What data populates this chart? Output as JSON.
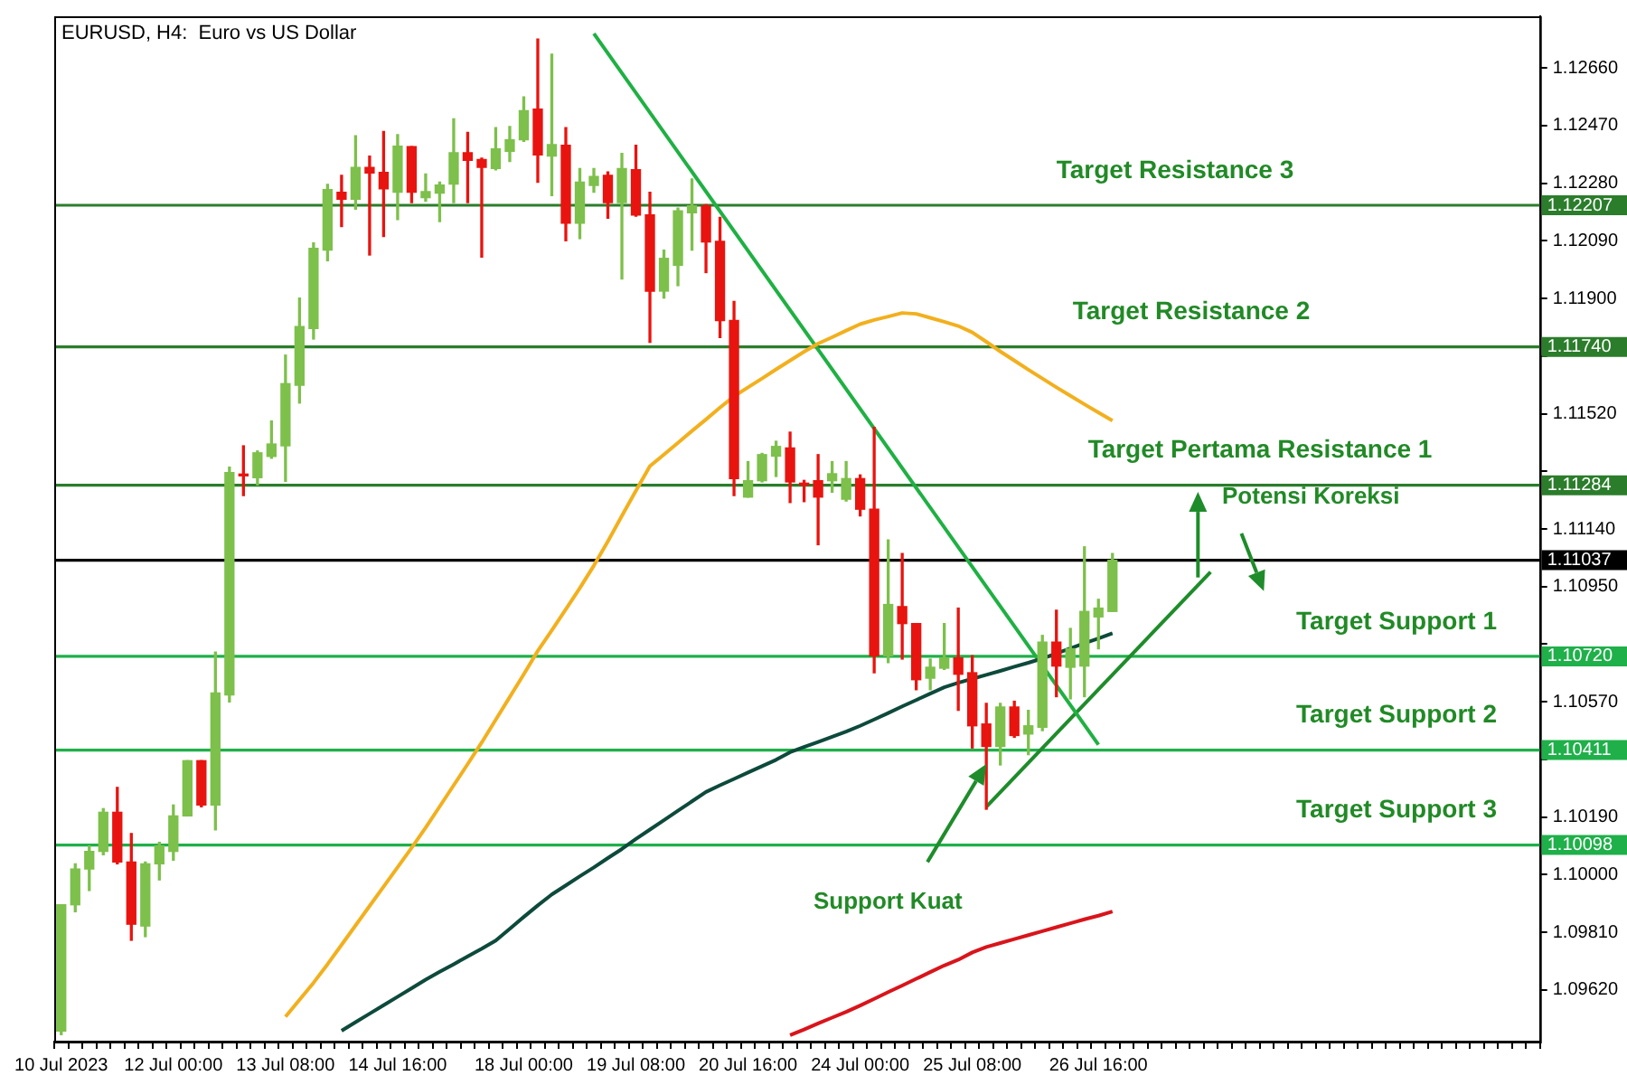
{
  "chart_data": {
    "type": "candlestick",
    "title": "EURUSD, H4:  Euro vs US Dollar",
    "categories": [
      "10 Jul 2023",
      null,
      null,
      null,
      null,
      null,
      null,
      null,
      "12 Jul 00:00",
      null,
      null,
      null,
      null,
      null,
      null,
      null,
      "13 Jul 08:00",
      null,
      null,
      null,
      null,
      null,
      null,
      null,
      "14 Jul 16:00",
      null,
      null,
      null,
      null,
      null,
      null,
      null,
      null,
      "18 Jul 00:00",
      null,
      null,
      null,
      null,
      null,
      null,
      null,
      "19 Jul 08:00",
      null,
      null,
      null,
      null,
      null,
      null,
      null,
      "20 Jul 16:00",
      null,
      null,
      null,
      null,
      null,
      null,
      null,
      "24 Jul 00:00",
      null,
      null,
      null,
      null,
      null,
      null,
      null,
      "25 Jul 08:00",
      null,
      null,
      null,
      null,
      null,
      null,
      null,
      null,
      "26 Jul 16:00",
      null,
      null,
      null,
      null,
      null,
      null,
      null,
      null,
      null,
      null,
      null,
      null,
      null,
      null,
      null,
      null,
      null,
      null,
      null,
      null,
      null,
      null,
      null,
      null,
      null,
      null,
      null,
      null,
      null,
      null,
      null
    ],
    "ohlc": [
      [
        1.09485,
        1.09901,
        1.09473,
        1.09901
      ],
      [
        1.09901,
        1.10036,
        1.09878,
        1.10019
      ],
      [
        1.10019,
        1.10095,
        1.09948,
        1.10077
      ],
      [
        1.10077,
        1.10218,
        1.10066,
        1.10206
      ],
      [
        1.10206,
        1.10288,
        1.10036,
        1.10042
      ],
      [
        1.10042,
        1.10136,
        1.09784,
        1.09837
      ],
      [
        1.09831,
        1.10042,
        1.09796,
        1.10036
      ],
      [
        1.10036,
        1.10107,
        1.09983,
        1.10095
      ],
      [
        1.10077,
        1.1023,
        1.10048,
        1.10194
      ],
      [
        1.10194,
        1.10376,
        1.10194,
        1.10376
      ],
      [
        1.10376,
        1.10376,
        1.10224,
        1.1023
      ],
      [
        1.1023,
        1.10734,
        1.10148,
        1.10599
      ],
      [
        1.10593,
        1.11344,
        1.1057,
        1.11326
      ],
      [
        1.1132,
        1.11414,
        1.1125,
        1.11315
      ],
      [
        1.11309,
        1.11397,
        1.11285,
        1.11391
      ],
      [
        1.11379,
        1.11496,
        1.11373,
        1.1142
      ],
      [
        1.11414,
        1.11713,
        1.11297,
        1.11619
      ],
      [
        1.11614,
        1.11901,
        1.11555,
        1.11807
      ],
      [
        1.11801,
        1.12083,
        1.11766,
        1.12065
      ],
      [
        1.12059,
        1.12276,
        1.12024,
        1.12259
      ],
      [
        1.1225,
        1.12306,
        1.12137,
        1.12227
      ],
      [
        1.12227,
        1.12436,
        1.12194,
        1.12332
      ],
      [
        1.12332,
        1.12369,
        1.12043,
        1.12313
      ],
      [
        1.12315,
        1.1245,
        1.12104,
        1.12261
      ],
      [
        1.1225,
        1.1244,
        1.1216,
        1.12402
      ],
      [
        1.124,
        1.124,
        1.12216,
        1.1225
      ],
      [
        1.12232,
        1.1231,
        1.1222,
        1.12252
      ],
      [
        1.12247,
        1.12283,
        1.12153,
        1.12274
      ],
      [
        1.12277,
        1.12492,
        1.12216,
        1.1238
      ],
      [
        1.1238,
        1.12447,
        1.12216,
        1.12355
      ],
      [
        1.12358,
        1.12362,
        1.12036,
        1.12332
      ],
      [
        1.12328,
        1.12463,
        1.12324,
        1.12393
      ],
      [
        1.12385,
        1.12467,
        1.12351,
        1.12423
      ],
      [
        1.12423,
        1.12564,
        1.12418,
        1.12519
      ],
      [
        1.12524,
        1.12755,
        1.12283,
        1.12373
      ],
      [
        1.12369,
        1.12705,
        1.12239,
        1.12407
      ],
      [
        1.12405,
        1.12463,
        1.1209,
        1.12148
      ],
      [
        1.12148,
        1.12328,
        1.12097,
        1.12283
      ],
      [
        1.12272,
        1.12328,
        1.1225,
        1.12302
      ],
      [
        1.12306,
        1.12317,
        1.12164,
        1.12216
      ],
      [
        1.12216,
        1.12378,
        1.11964,
        1.12328
      ],
      [
        1.12324,
        1.12405,
        1.12171,
        1.12175
      ],
      [
        1.12175,
        1.1225,
        1.11755,
        1.11924
      ],
      [
        1.11924,
        1.12059,
        1.11901,
        1.12032
      ],
      [
        1.12009,
        1.12198,
        1.11942,
        1.12189
      ],
      [
        1.12182,
        1.12294,
        1.12059,
        1.12205
      ],
      [
        1.12205,
        1.12209,
        1.11985,
        1.12086
      ],
      [
        1.12088,
        1.12167,
        1.11771,
        1.11827
      ],
      [
        1.11827,
        1.1189,
        1.1125,
        1.11306
      ],
      [
        1.11245,
        1.11362,
        1.11245,
        1.11299
      ],
      [
        1.11299,
        1.11389,
        1.11295,
        1.11385
      ],
      [
        1.1138,
        1.11429,
        1.11313,
        1.11412
      ],
      [
        1.11407,
        1.11459,
        1.11227,
        1.11295
      ],
      [
        1.1129,
        1.113,
        1.1123,
        1.11285
      ],
      [
        1.11299,
        1.11385,
        1.11088,
        1.11245
      ],
      [
        1.11299,
        1.11362,
        1.11261,
        1.11322
      ],
      [
        1.11238,
        1.11362,
        1.11232,
        1.11306
      ],
      [
        1.11306,
        1.11318,
        1.11183,
        1.11205
      ],
      [
        1.11205,
        1.11475,
        1.10666,
        1.10722
      ],
      [
        1.10722,
        1.11104,
        1.10699,
        1.10891
      ],
      [
        1.10884,
        1.11059,
        1.10711,
        1.10828
      ],
      [
        1.10828,
        1.10828,
        1.1061,
        1.10643
      ],
      [
        1.10648,
        1.10711,
        1.1061,
        1.10684
      ],
      [
        1.10681,
        1.10828,
        1.10677,
        1.10715
      ],
      [
        1.10715,
        1.10879,
        1.10542,
        1.10661
      ],
      [
        1.10666,
        1.10722,
        1.10418,
        1.10491
      ],
      [
        1.10497,
        1.10565,
        1.10216,
        1.10423
      ],
      [
        1.10423,
        1.10565,
        1.10362,
        1.10553
      ],
      [
        1.10553,
        1.10572,
        1.10453,
        1.10459
      ],
      [
        1.10464,
        1.10542,
        1.10396,
        1.10491
      ],
      [
        1.10486,
        1.10789,
        1.10475,
        1.10767
      ],
      [
        1.10767,
        1.10872,
        1.10587,
        1.10688
      ],
      [
        1.10684,
        1.10812,
        1.1058,
        1.10745
      ],
      [
        1.10688,
        1.11081,
        1.10587,
        1.10868
      ],
      [
        1.1085,
        1.10908,
        1.10745,
        1.10879
      ],
      [
        1.10868,
        1.11059,
        1.10868,
        1.11037
      ],
      null,
      null,
      null,
      null,
      null,
      null,
      null,
      null,
      null,
      null,
      null,
      null,
      null,
      null,
      null,
      null,
      null,
      null,
      null,
      null,
      null,
      null,
      null,
      null,
      null,
      null,
      null,
      null,
      null,
      null
    ],
    "series": [
      {
        "type": "line",
        "color": "#f2b01e",
        "values": [
          null,
          null,
          null,
          null,
          null,
          null,
          null,
          null,
          null,
          null,
          null,
          null,
          null,
          null,
          null,
          null,
          1.09532,
          1.09588,
          1.09644,
          1.09705,
          1.09769,
          1.09833,
          1.09897,
          1.09961,
          1.10025,
          1.10089,
          1.10155,
          1.10225,
          1.10295,
          1.10365,
          1.10436,
          1.10511,
          1.10586,
          1.10661,
          1.10738,
          1.10806,
          1.10875,
          1.10945,
          1.11019,
          1.11099,
          1.11183,
          1.11266,
          1.11347,
          1.11385,
          1.11424,
          1.11463,
          1.11501,
          1.1154,
          1.11577,
          1.11607,
          1.11636,
          1.11666,
          1.11695,
          1.11724,
          1.11751,
          1.11772,
          1.11794,
          1.11815,
          1.11829,
          1.1184,
          1.11852,
          1.11849,
          1.11836,
          1.11823,
          1.11809,
          1.11788,
          1.11757,
          1.11725,
          1.11695,
          1.11665,
          1.11636,
          1.11607,
          1.11579,
          1.11551,
          1.11524,
          1.11497,
          null,
          null,
          null,
          null,
          null,
          null,
          null,
          null,
          null,
          null,
          null,
          null,
          null,
          null,
          null,
          null,
          null,
          null,
          null,
          null,
          null,
          null,
          null,
          null,
          null,
          null,
          null,
          null,
          null,
          null
        ]
      },
      {
        "type": "line",
        "color": "#0d4a3c",
        "values": [
          null,
          null,
          null,
          null,
          null,
          null,
          null,
          null,
          null,
          null,
          null,
          null,
          null,
          null,
          null,
          null,
          null,
          null,
          null,
          null,
          1.09486,
          1.09514,
          1.09542,
          1.0957,
          1.09598,
          1.09626,
          1.09654,
          1.0968,
          1.09705,
          1.09731,
          1.09756,
          1.09783,
          1.09822,
          1.09861,
          1.09899,
          1.09935,
          1.09965,
          1.09995,
          1.10024,
          1.10055,
          1.10085,
          1.10118,
          1.10149,
          1.1018,
          1.10211,
          1.10242,
          1.10273,
          1.10295,
          1.10316,
          1.10337,
          1.10358,
          1.10379,
          1.10404,
          1.10421,
          1.10438,
          1.10455,
          1.10472,
          1.10491,
          1.10512,
          1.10533,
          1.10555,
          1.10576,
          1.10597,
          1.10618,
          1.10633,
          1.10646,
          1.10659,
          1.10672,
          1.10686,
          1.10699,
          1.10713,
          1.1073,
          1.10746,
          1.10763,
          1.10779,
          1.10796,
          null,
          null,
          null,
          null,
          null,
          null,
          null,
          null,
          null,
          null,
          null,
          null,
          null,
          null,
          null,
          null,
          null,
          null,
          null,
          null,
          null,
          null,
          null,
          null,
          null,
          null,
          null,
          null,
          null,
          null
        ]
      },
      {
        "type": "line",
        "color": "#d9141b",
        "values": [
          null,
          null,
          null,
          null,
          null,
          null,
          null,
          null,
          null,
          null,
          null,
          null,
          null,
          null,
          null,
          null,
          null,
          null,
          null,
          null,
          null,
          null,
          null,
          null,
          null,
          null,
          null,
          null,
          null,
          null,
          null,
          null,
          null,
          null,
          null,
          null,
          null,
          null,
          null,
          null,
          null,
          null,
          null,
          null,
          null,
          null,
          null,
          null,
          null,
          null,
          null,
          null,
          1.09471,
          1.0949,
          1.0951,
          1.09529,
          1.09548,
          1.09569,
          1.09591,
          1.09613,
          1.09635,
          1.09657,
          1.09679,
          1.09701,
          1.0972,
          1.09744,
          1.09762,
          1.09775,
          1.09788,
          1.09801,
          1.09814,
          1.09827,
          1.0984,
          1.09853,
          1.09865,
          1.09879,
          null,
          null,
          null,
          null,
          null,
          null,
          null,
          null,
          null,
          null,
          null,
          null,
          null,
          null,
          null,
          null,
          null,
          null,
          null,
          null,
          null,
          null,
          null,
          null,
          null,
          null,
          null,
          null,
          null,
          null
        ]
      },
      {
        "type": "line",
        "color": "#1fb043",
        "values": [
          null,
          null,
          null,
          null,
          null,
          null,
          null,
          null,
          null,
          null,
          null,
          null,
          null,
          null,
          null,
          null,
          null,
          null,
          null,
          null,
          null,
          null,
          null,
          null,
          null,
          null,
          null,
          null,
          null,
          null,
          null,
          null,
          null,
          null,
          null,
          null,
          null,
          null,
          1.12773,
          null,
          null,
          null,
          null,
          null,
          null,
          null,
          null,
          null,
          null,
          null,
          null,
          null,
          null,
          null,
          null,
          null,
          null,
          null,
          null,
          null,
          null,
          null,
          null,
          null,
          null,
          null,
          null,
          null,
          null,
          null,
          null,
          null,
          null,
          null,
          1.10429,
          null,
          null,
          null,
          null,
          null,
          null,
          null,
          null,
          null,
          null,
          null,
          null,
          null,
          null,
          null,
          null,
          null,
          null,
          null,
          null,
          null,
          null,
          null,
          null,
          null,
          null,
          null,
          null,
          null,
          null,
          null
        ]
      },
      {
        "type": "line",
        "color": "#1e8c2a",
        "values": [
          null,
          null,
          null,
          null,
          null,
          null,
          null,
          null,
          null,
          null,
          null,
          null,
          null,
          null,
          null,
          null,
          null,
          null,
          null,
          null,
          null,
          null,
          null,
          null,
          null,
          null,
          null,
          null,
          null,
          null,
          null,
          null,
          null,
          null,
          null,
          null,
          null,
          null,
          null,
          null,
          null,
          null,
          null,
          null,
          null,
          null,
          null,
          null,
          null,
          null,
          null,
          null,
          null,
          null,
          null,
          null,
          null,
          null,
          null,
          null,
          null,
          null,
          null,
          null,
          null,
          null,
          1.10224,
          null,
          null,
          null,
          null,
          null,
          null,
          null,
          null,
          null,
          null,
          null,
          null,
          null,
          null,
          null,
          1.10998,
          null,
          null,
          null,
          null,
          null,
          null,
          null,
          null,
          null,
          null,
          null,
          null,
          null,
          null,
          null,
          null,
          null,
          null,
          null,
          null,
          null,
          null,
          null
        ]
      }
    ],
    "ylim": [
      1.0945,
      1.1283
    ],
    "yticks": [
      {
        "value": 1.0962,
        "label": "1.09620"
      },
      {
        "value": 1.0981,
        "label": "1.09810"
      },
      {
        "value": 1.1,
        "label": "1.10000"
      },
      {
        "value": 1.1019,
        "label": "1.10190"
      },
      {
        "value": 1.1038,
        "label": null
      },
      {
        "value": 1.1057,
        "label": "1.10570"
      },
      {
        "value": 1.1076,
        "label": null
      },
      {
        "value": 1.1095,
        "label": "1.10950"
      },
      {
        "value": 1.1114,
        "label": "1.11140"
      },
      {
        "value": 1.1133,
        "label": null
      },
      {
        "value": 1.1152,
        "label": "1.11520"
      },
      {
        "value": 1.1171,
        "label": null
      },
      {
        "value": 1.119,
        "label": "1.11900"
      },
      {
        "value": 1.1209,
        "label": "1.12090"
      },
      {
        "value": 1.1228,
        "label": "1.12280"
      },
      {
        "value": 1.1247,
        "label": "1.12470"
      },
      {
        "value": 1.1266,
        "label": "1.12660"
      }
    ],
    "ref_lines": [
      {
        "axis": "y",
        "value": 1.12207,
        "label": "Target Resistance 3",
        "color": "#2b7d2b"
      },
      {
        "axis": "y",
        "value": 1.1174,
        "label": "Target Resistance 2",
        "color": "#2b7d2b"
      },
      {
        "axis": "y",
        "value": 1.11284,
        "label": "Target Pertama Resistance 1",
        "color": "#2b7d2b"
      },
      {
        "axis": "y",
        "value": 1.11037,
        "color": "#000000"
      },
      {
        "axis": "y",
        "value": 1.1072,
        "label": "Target Support 1",
        "color": "#1fb04a"
      },
      {
        "axis": "y",
        "value": 1.10411,
        "label": "Target Support 2",
        "color": "#1fb04a"
      },
      {
        "axis": "y",
        "value": 1.10098,
        "label": "Target Support 3",
        "color": "#1fb04a"
      }
    ],
    "annotations": [
      {
        "text": "Potensi Koreksi",
        "y": 1.11262
      },
      "Support Kuat",
      "1.12207",
      "1.11740",
      "1.11284",
      "1.11037",
      "1.10720",
      "1.10411",
      "1.10098"
    ],
    "legend": false
  }
}
